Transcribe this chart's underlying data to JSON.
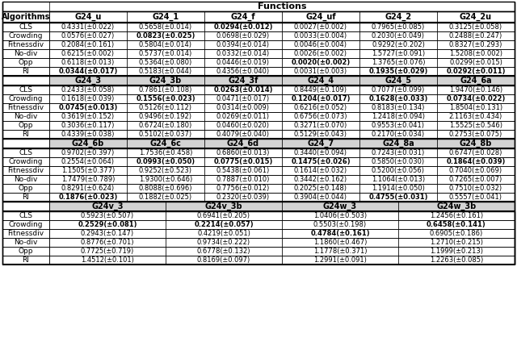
{
  "algorithms": [
    "CLS",
    "Crowding",
    "Fitnessdiv",
    "No-div",
    "Opp",
    "RI"
  ],
  "section1": {
    "headers": [
      "G24_u",
      "G24_1",
      "G24_f",
      "G24_uf",
      "G24_2",
      "G24_2u"
    ],
    "data": [
      [
        "0.4331(±0.022)",
        "0.5658(±0.014)",
        "0.0294(±0.012)",
        "0.0027(±0.002)",
        "0.7965(±0.085)",
        "0.3125(±0.058)"
      ],
      [
        "0.0576(±0.027)",
        "0.0823(±0.025)",
        "0.0698(±0.029)",
        "0.0033(±0.004)",
        "0.2030(±0.049)",
        "0.2488(±0.247)"
      ],
      [
        "0.2084(±0.161)",
        "0.5804(±0.014)",
        "0.0394(±0.014)",
        "0.0046(±0.004)",
        "0.9292(±0.202)",
        "0.8327(±0.293)"
      ],
      [
        "0.6215(±0.002)",
        "0.5737(±0.014)",
        "0.0332(±0.014)",
        "0.0026(±0.002)",
        "1.5727(±0.091)",
        "1.5208(±0.002)"
      ],
      [
        "0.6118(±0.013)",
        "0.5364(±0.080)",
        "0.0446(±0.019)",
        "0.0020(±0.002)",
        "1.3765(±0.076)",
        "0.0299(±0.015)"
      ],
      [
        "0.0344(±0.017)",
        "0.5183(±0.044)",
        "0.4356(±0.040)",
        "0.0031(±0.003)",
        "0.1935(±0.029)",
        "0.0292(±0.011)"
      ]
    ],
    "bold": [
      [
        false,
        false,
        true,
        false,
        false,
        false
      ],
      [
        false,
        true,
        false,
        false,
        false,
        false
      ],
      [
        false,
        false,
        false,
        false,
        false,
        false
      ],
      [
        false,
        false,
        false,
        false,
        false,
        false
      ],
      [
        false,
        false,
        false,
        true,
        false,
        false
      ],
      [
        true,
        false,
        false,
        false,
        true,
        true
      ]
    ]
  },
  "section2": {
    "headers": [
      "G24_3",
      "G24_3b",
      "G24_3f",
      "G24_4",
      "G24_5",
      "G24_6a"
    ],
    "data": [
      [
        "0.2433(±0.058)",
        "0.7861(±0.108)",
        "0.0263(±0.014)",
        "0.8449(±0.109)",
        "0.7077(±0.099)",
        "1.9470(±0.146)"
      ],
      [
        "0.1618(±0.039)",
        "0.1556(±0.023)",
        "0.0471(±0.017)",
        "0.1204(±0.017)",
        "0.1628(±0.033)",
        "0.0734(±0.022)"
      ],
      [
        "0.0745(±0.013)",
        "0.5126(±0.112)",
        "0.0314(±0.009)",
        "0.6216(±0.052)",
        "0.8183(±0.134)",
        "1.8504(±0.131)"
      ],
      [
        "0.3619(±0.152)",
        "0.9496(±0.192)",
        "0.0269(±0.011)",
        "0.6756(±0.073)",
        "1.2418(±0.094)",
        "2.1163(±0.434)"
      ],
      [
        "0.3036(±0.117)",
        "0.6724(±0.180)",
        "0.0460(±0.020)",
        "0.3271(±0.070)",
        "0.9553(±0.041)",
        "1.5525(±0.546)"
      ],
      [
        "0.4339(±0.038)",
        "0.5102(±0.037)",
        "0.4079(±0.040)",
        "0.5129(±0.043)",
        "0.2170(±0.034)",
        "0.2753(±0.075)"
      ]
    ],
    "bold": [
      [
        false,
        false,
        true,
        false,
        false,
        false
      ],
      [
        false,
        true,
        false,
        true,
        true,
        true
      ],
      [
        true,
        false,
        false,
        false,
        false,
        false
      ],
      [
        false,
        false,
        false,
        false,
        false,
        false
      ],
      [
        false,
        false,
        false,
        false,
        false,
        false
      ],
      [
        false,
        false,
        false,
        false,
        false,
        false
      ]
    ]
  },
  "section3": {
    "headers": [
      "G24_6b",
      "G24_6c",
      "G24_6d",
      "G24_7",
      "G24_8a",
      "G24_8b"
    ],
    "data": [
      [
        "0.9702(±0.397)",
        "1.7536(±0.458)",
        "0.6860(±0.013)",
        "0.3440(±0.094)",
        "0.7243(±0.031)",
        "0.6747(±0.028)"
      ],
      [
        "0.2554(±0.064)",
        "0.0993(±0.050)",
        "0.0775(±0.015)",
        "0.1475(±0.026)",
        "0.5850(±0.030)",
        "0.1864(±0.039)"
      ],
      [
        "1.1505(±0.377)",
        "0.9252(±0.523)",
        "0.5438(±0.061)",
        "0.1614(±0.032)",
        "0.5200(±0.056)",
        "0.7040(±0.069)"
      ],
      [
        "1.7479(±0.789)",
        "1.9300(±0.646)",
        "0.7887(±0.010)",
        "0.3442(±0.162)",
        "1.1064(±0.013)",
        "0.7265(±0.007)"
      ],
      [
        "0.8291(±0.624)",
        "0.8088(±0.696)",
        "0.7756(±0.012)",
        "0.2025(±0.148)",
        "1.1914(±0.050)",
        "0.7510(±0.032)"
      ],
      [
        "0.1876(±0.023)",
        "0.1882(±0.025)",
        "0.2320(±0.039)",
        "0.3904(±0.044)",
        "0.4755(±0.031)",
        "0.5557(±0.041)"
      ]
    ],
    "bold": [
      [
        false,
        false,
        false,
        false,
        false,
        false
      ],
      [
        false,
        true,
        true,
        true,
        false,
        true
      ],
      [
        false,
        false,
        false,
        false,
        false,
        false
      ],
      [
        false,
        false,
        false,
        false,
        false,
        false
      ],
      [
        false,
        false,
        false,
        false,
        false,
        false
      ],
      [
        true,
        false,
        false,
        false,
        true,
        false
      ]
    ]
  },
  "section4": {
    "headers": [
      "G24v_3",
      "G24v_3b",
      "G24w_3",
      "G24w_3b"
    ],
    "data": [
      [
        "0.5923(±0.507)",
        "0.6941(±0.205)",
        "1.0406(±0.503)",
        "1.2456(±0.161)"
      ],
      [
        "0.2529(±0.081)",
        "0.2214(±0.057)",
        "0.5503(±0.198)",
        "0.6458(±0.141)"
      ],
      [
        "0.2943(±0.147)",
        "0.4219(±0.051)",
        "0.4784(±0.161)",
        "0.6905(±0.186)"
      ],
      [
        "0.8776(±0.701)",
        "0.9734(±0.222)",
        "1.1860(±0.467)",
        "1.2710(±0.215)"
      ],
      [
        "0.7725(±0.719)",
        "0.6778(±0.132)",
        "1.1778(±0.371)",
        "1.1999(±0.213)"
      ],
      [
        "1.4512(±0.101)",
        "0.8169(±0.097)",
        "1.2991(±0.091)",
        "1.2263(±0.085)"
      ]
    ],
    "bold": [
      [
        false,
        false,
        false,
        false
      ],
      [
        true,
        true,
        false,
        true
      ],
      [
        false,
        false,
        true,
        false
      ],
      [
        false,
        false,
        false,
        false
      ],
      [
        false,
        false,
        false,
        false
      ],
      [
        false,
        false,
        false,
        false
      ]
    ]
  },
  "fontsize": 6.0,
  "header_fontsize": 7.0,
  "alg_fontsize": 6.5
}
